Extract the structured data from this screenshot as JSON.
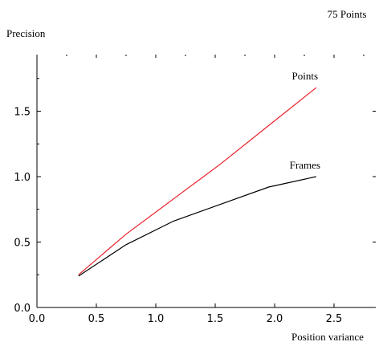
{
  "chart_data": {
    "type": "line",
    "title": "75 Points",
    "xlabel": "Position variance",
    "ylabel": "Precision",
    "xlim": [
      0.0,
      2.9
    ],
    "ylim": [
      0.0,
      1.9
    ],
    "xticks": [
      0.0,
      0.5,
      1.0,
      1.5,
      2.0,
      2.5
    ],
    "xtick_labels": [
      "0.0",
      "0.5",
      "1.0",
      "1.5",
      "2.0",
      "2.5"
    ],
    "yticks": [
      0.0,
      0.5,
      1.0,
      1.5
    ],
    "ytick_labels": [
      "0.0",
      "0.5",
      "1.0",
      "1.5"
    ],
    "grid": false,
    "legend": "inline labels at line ends",
    "series": [
      {
        "name": "Points",
        "color": "#e8202a",
        "x": [
          0.35,
          0.75,
          1.15,
          1.55,
          1.95,
          2.35
        ],
        "y": [
          0.25,
          0.56,
          0.83,
          1.1,
          1.39,
          1.68
        ]
      },
      {
        "name": "Frames",
        "color": "#000000",
        "x": [
          0.35,
          0.75,
          1.15,
          1.55,
          1.95,
          2.35
        ],
        "y": [
          0.24,
          0.48,
          0.66,
          0.79,
          0.92,
          1.0
        ]
      }
    ]
  }
}
